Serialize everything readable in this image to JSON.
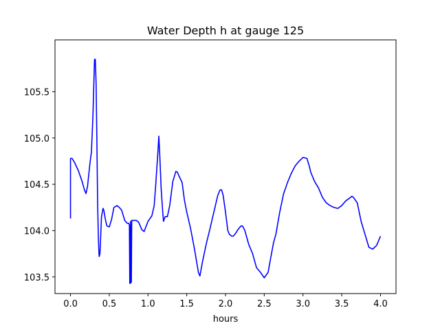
{
  "chart_data": {
    "type": "line",
    "title": "Water Depth h at gauge 125",
    "xlabel": "hours",
    "ylabel": "",
    "xlim": [
      -0.2,
      4.2
    ],
    "ylim": [
      103.32,
      106.06
    ],
    "xticks": [
      0.0,
      0.5,
      1.0,
      1.5,
      2.0,
      2.5,
      3.0,
      3.5,
      4.0
    ],
    "xtick_labels": [
      "0.0",
      "0.5",
      "1.0",
      "1.5",
      "2.0",
      "2.5",
      "3.0",
      "3.5",
      "4.0"
    ],
    "yticks": [
      103.5,
      104.0,
      104.5,
      105.0,
      105.5
    ],
    "ytick_labels": [
      "103.5",
      "104.0",
      "104.5",
      "105.0",
      "105.5"
    ],
    "grid": false,
    "series": [
      {
        "color": "#0000ff",
        "x": [
          0.0,
          0.0,
          0.0,
          0.0,
          0.02,
          0.05,
          0.1,
          0.15,
          0.18,
          0.2,
          0.22,
          0.25,
          0.27,
          0.29,
          0.3,
          0.31,
          0.32,
          0.33,
          0.34,
          0.35,
          0.36,
          0.37,
          0.38,
          0.39,
          0.4,
          0.42,
          0.43,
          0.45,
          0.47,
          0.5,
          0.53,
          0.56,
          0.6,
          0.63,
          0.66,
          0.7,
          0.73,
          0.75,
          0.76,
          0.765,
          0.77,
          0.775,
          0.78,
          0.785,
          0.79,
          0.8,
          0.85,
          0.88,
          0.92,
          0.95,
          1.0,
          1.05,
          1.08,
          1.1,
          1.12,
          1.13,
          1.14,
          1.15,
          1.17,
          1.19,
          1.2,
          1.22,
          1.25,
          1.28,
          1.32,
          1.36,
          1.38,
          1.4,
          1.44,
          1.47,
          1.5,
          1.55,
          1.6,
          1.65,
          1.67,
          1.7,
          1.75,
          1.8,
          1.85,
          1.9,
          1.93,
          1.95,
          1.97,
          2.0,
          2.03,
          2.05,
          2.08,
          2.1,
          2.13,
          2.16,
          2.2,
          2.22,
          2.25,
          2.3,
          2.35,
          2.4,
          2.45,
          2.5,
          2.55,
          2.58,
          2.62,
          2.65,
          2.7,
          2.75,
          2.78,
          2.8,
          2.85,
          2.9,
          2.95,
          3.0,
          3.05,
          3.08,
          3.1,
          3.15,
          3.2,
          3.25,
          3.3,
          3.35,
          3.4,
          3.45,
          3.5,
          3.53,
          3.55,
          3.6,
          3.63,
          3.65,
          3.7,
          3.75,
          3.8,
          3.85,
          3.9,
          3.95,
          4.0
        ],
        "y": [
          104.13,
          104.45,
          104.78,
          104.78,
          104.78,
          104.74,
          104.65,
          104.53,
          104.44,
          104.4,
          104.48,
          104.72,
          104.85,
          105.25,
          105.55,
          105.85,
          105.85,
          105.6,
          105.0,
          104.3,
          103.9,
          103.72,
          103.75,
          103.95,
          104.15,
          104.24,
          104.22,
          104.12,
          104.05,
          104.04,
          104.12,
          104.25,
          104.27,
          104.25,
          104.22,
          104.11,
          104.08,
          104.08,
          104.06,
          103.43,
          103.43,
          104.1,
          103.44,
          103.44,
          104.11,
          104.11,
          104.11,
          104.09,
          104.01,
          103.99,
          104.1,
          104.16,
          104.27,
          104.5,
          104.75,
          104.88,
          105.02,
          104.85,
          104.45,
          104.2,
          104.1,
          104.15,
          104.15,
          104.27,
          104.53,
          104.64,
          104.63,
          104.59,
          104.52,
          104.33,
          104.2,
          104.02,
          103.8,
          103.55,
          103.51,
          103.65,
          103.85,
          104.02,
          104.2,
          104.38,
          104.44,
          104.44,
          104.38,
          104.2,
          104.0,
          103.96,
          103.94,
          103.94,
          103.97,
          104.01,
          104.05,
          104.05,
          104.0,
          103.85,
          103.75,
          103.6,
          103.55,
          103.49,
          103.55,
          103.69,
          103.87,
          103.96,
          104.2,
          104.4,
          104.47,
          104.52,
          104.62,
          104.7,
          104.75,
          104.79,
          104.78,
          104.7,
          104.63,
          104.53,
          104.46,
          104.36,
          104.3,
          104.27,
          104.25,
          104.24,
          104.27,
          104.3,
          104.32,
          104.35,
          104.37,
          104.36,
          104.3,
          104.1,
          103.96,
          103.82,
          103.8,
          103.84,
          103.94
        ]
      }
    ]
  }
}
